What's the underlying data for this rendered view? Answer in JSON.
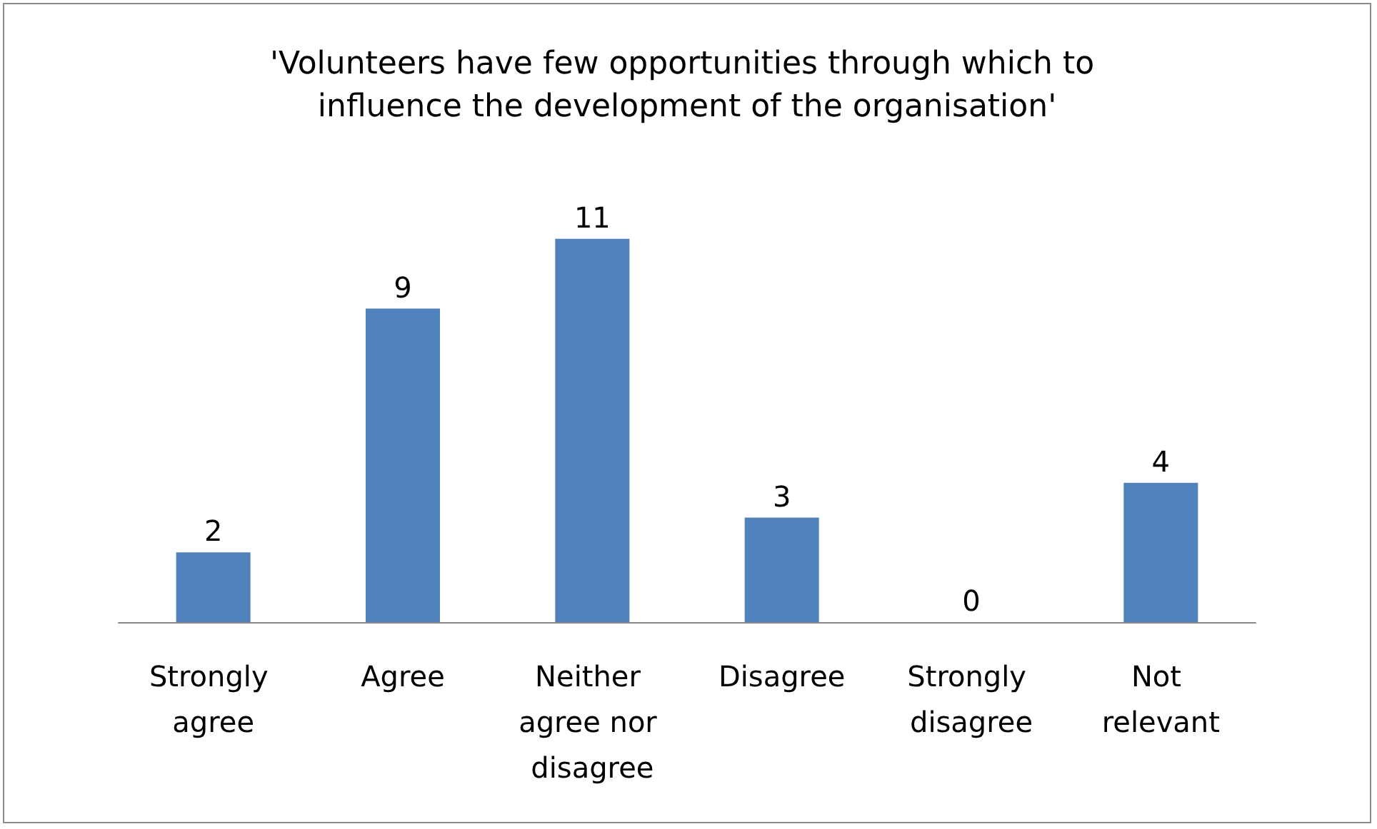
{
  "chart_data": {
    "type": "bar",
    "title": "'Volunteers have few opportunities through which to influence the development of the organisation'",
    "categories": [
      "Strongly agree",
      "Agree",
      "Neither agree nor disagree",
      "Disagree",
      "Strongly disagree",
      "Not relevant"
    ],
    "values": [
      2,
      9,
      11,
      3,
      0,
      4
    ],
    "color": "#4f81bd",
    "data_labels": true,
    "grid": false
  }
}
